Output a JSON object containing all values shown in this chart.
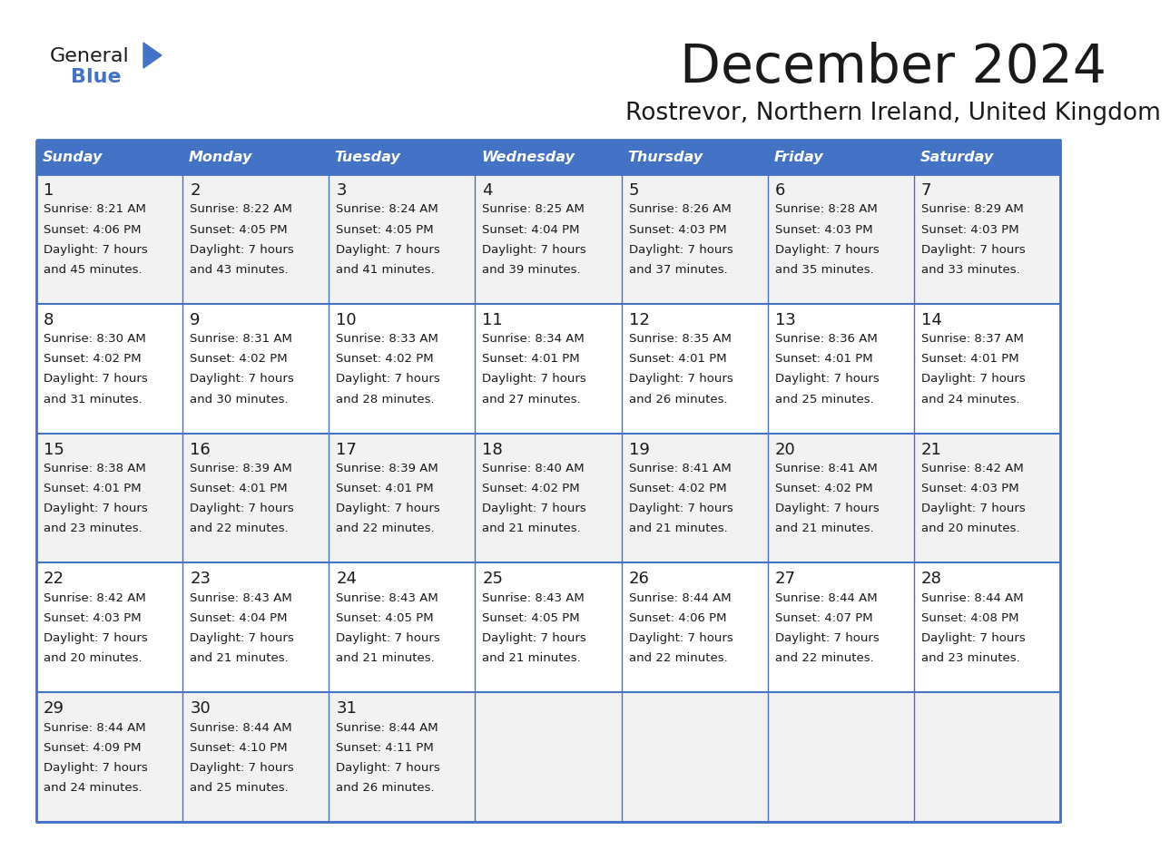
{
  "title": "December 2024",
  "subtitle": "Rostrevor, Northern Ireland, United Kingdom",
  "header_color": "#4472C4",
  "header_text_color": "#FFFFFF",
  "cell_bg_even": "#F2F2F2",
  "cell_bg_odd": "#FFFFFF",
  "border_color": "#4472C4",
  "text_color": "#1a1a1a",
  "days_of_week": [
    "Sunday",
    "Monday",
    "Tuesday",
    "Wednesday",
    "Thursday",
    "Friday",
    "Saturday"
  ],
  "logo_general_color": "#1a1a1a",
  "logo_blue_color": "#4472C4",
  "weeks": [
    [
      {
        "day": 1,
        "sunrise": "8:21 AM",
        "sunset": "4:06 PM",
        "daylight_suffix": "45 minutes."
      },
      {
        "day": 2,
        "sunrise": "8:22 AM",
        "sunset": "4:05 PM",
        "daylight_suffix": "43 minutes."
      },
      {
        "day": 3,
        "sunrise": "8:24 AM",
        "sunset": "4:05 PM",
        "daylight_suffix": "41 minutes."
      },
      {
        "day": 4,
        "sunrise": "8:25 AM",
        "sunset": "4:04 PM",
        "daylight_suffix": "39 minutes."
      },
      {
        "day": 5,
        "sunrise": "8:26 AM",
        "sunset": "4:03 PM",
        "daylight_suffix": "37 minutes."
      },
      {
        "day": 6,
        "sunrise": "8:28 AM",
        "sunset": "4:03 PM",
        "daylight_suffix": "35 minutes."
      },
      {
        "day": 7,
        "sunrise": "8:29 AM",
        "sunset": "4:03 PM",
        "daylight_suffix": "33 minutes."
      }
    ],
    [
      {
        "day": 8,
        "sunrise": "8:30 AM",
        "sunset": "4:02 PM",
        "daylight_suffix": "31 minutes."
      },
      {
        "day": 9,
        "sunrise": "8:31 AM",
        "sunset": "4:02 PM",
        "daylight_suffix": "30 minutes."
      },
      {
        "day": 10,
        "sunrise": "8:33 AM",
        "sunset": "4:02 PM",
        "daylight_suffix": "28 minutes."
      },
      {
        "day": 11,
        "sunrise": "8:34 AM",
        "sunset": "4:01 PM",
        "daylight_suffix": "27 minutes."
      },
      {
        "day": 12,
        "sunrise": "8:35 AM",
        "sunset": "4:01 PM",
        "daylight_suffix": "26 minutes."
      },
      {
        "day": 13,
        "sunrise": "8:36 AM",
        "sunset": "4:01 PM",
        "daylight_suffix": "25 minutes."
      },
      {
        "day": 14,
        "sunrise": "8:37 AM",
        "sunset": "4:01 PM",
        "daylight_suffix": "24 minutes."
      }
    ],
    [
      {
        "day": 15,
        "sunrise": "8:38 AM",
        "sunset": "4:01 PM",
        "daylight_suffix": "23 minutes."
      },
      {
        "day": 16,
        "sunrise": "8:39 AM",
        "sunset": "4:01 PM",
        "daylight_suffix": "22 minutes."
      },
      {
        "day": 17,
        "sunrise": "8:39 AM",
        "sunset": "4:01 PM",
        "daylight_suffix": "22 minutes."
      },
      {
        "day": 18,
        "sunrise": "8:40 AM",
        "sunset": "4:02 PM",
        "daylight_suffix": "21 minutes."
      },
      {
        "day": 19,
        "sunrise": "8:41 AM",
        "sunset": "4:02 PM",
        "daylight_suffix": "21 minutes."
      },
      {
        "day": 20,
        "sunrise": "8:41 AM",
        "sunset": "4:02 PM",
        "daylight_suffix": "21 minutes."
      },
      {
        "day": 21,
        "sunrise": "8:42 AM",
        "sunset": "4:03 PM",
        "daylight_suffix": "20 minutes."
      }
    ],
    [
      {
        "day": 22,
        "sunrise": "8:42 AM",
        "sunset": "4:03 PM",
        "daylight_suffix": "20 minutes."
      },
      {
        "day": 23,
        "sunrise": "8:43 AM",
        "sunset": "4:04 PM",
        "daylight_suffix": "21 minutes."
      },
      {
        "day": 24,
        "sunrise": "8:43 AM",
        "sunset": "4:05 PM",
        "daylight_suffix": "21 minutes."
      },
      {
        "day": 25,
        "sunrise": "8:43 AM",
        "sunset": "4:05 PM",
        "daylight_suffix": "21 minutes."
      },
      {
        "day": 26,
        "sunrise": "8:44 AM",
        "sunset": "4:06 PM",
        "daylight_suffix": "22 minutes."
      },
      {
        "day": 27,
        "sunrise": "8:44 AM",
        "sunset": "4:07 PM",
        "daylight_suffix": "22 minutes."
      },
      {
        "day": 28,
        "sunrise": "8:44 AM",
        "sunset": "4:08 PM",
        "daylight_suffix": "23 minutes."
      }
    ],
    [
      {
        "day": 29,
        "sunrise": "8:44 AM",
        "sunset": "4:09 PM",
        "daylight_suffix": "24 minutes."
      },
      {
        "day": 30,
        "sunrise": "8:44 AM",
        "sunset": "4:10 PM",
        "daylight_suffix": "25 minutes."
      },
      {
        "day": 31,
        "sunrise": "8:44 AM",
        "sunset": "4:11 PM",
        "daylight_suffix": "26 minutes."
      },
      null,
      null,
      null,
      null
    ]
  ]
}
